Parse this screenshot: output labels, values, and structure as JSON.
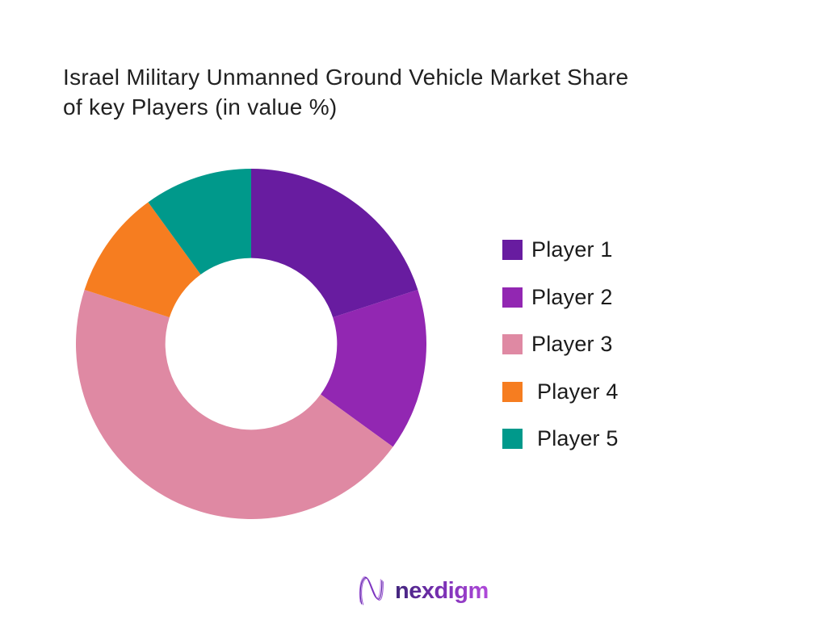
{
  "page": {
    "background": "#ffffff"
  },
  "title": {
    "line1": "Israel Military Unmanned Ground Vehicle Market Share",
    "line2": "of key Players (in value %)",
    "full": "Israel Military Unmanned Ground Vehicle Market Share of key Players (in value %)",
    "color": "#212121"
  },
  "chart_data": {
    "type": "pie",
    "subtype": "donut",
    "title": "Israel Military Unmanned Ground Vehicle Market Share of key Players (in value %)",
    "categories": [
      "Player 1",
      "Player 2",
      "Player 3",
      "Player 4",
      "Player 5"
    ],
    "values": [
      20,
      15,
      45,
      10,
      10
    ],
    "unit": "value %",
    "colors": [
      "#681ca0",
      "#9227b2",
      "#df89a3",
      "#f67d20",
      "#00998b"
    ],
    "start_angle_deg": 0,
    "direction": "clockwise",
    "donut_hole_ratio": 0.49,
    "hole_color": "#ffffff",
    "legend_position": "right",
    "data_labels": false
  },
  "legend": {
    "items": [
      {
        "label": "Player 1",
        "color": "#681ca0"
      },
      {
        "label": "Player 2",
        "color": "#9227b2"
      },
      {
        "label": "Player 3",
        "color": "#df89a3"
      },
      {
        "label": "Player 4",
        "color": "#f67d20"
      },
      {
        "label": "Player 5",
        "color": "#00998b"
      }
    ]
  },
  "logo": {
    "text": "nexdigm",
    "mark": "nexdigm-n-wave-mark",
    "text_gradient": [
      "#41257c",
      "#7a2fb4",
      "#b04ada"
    ]
  }
}
